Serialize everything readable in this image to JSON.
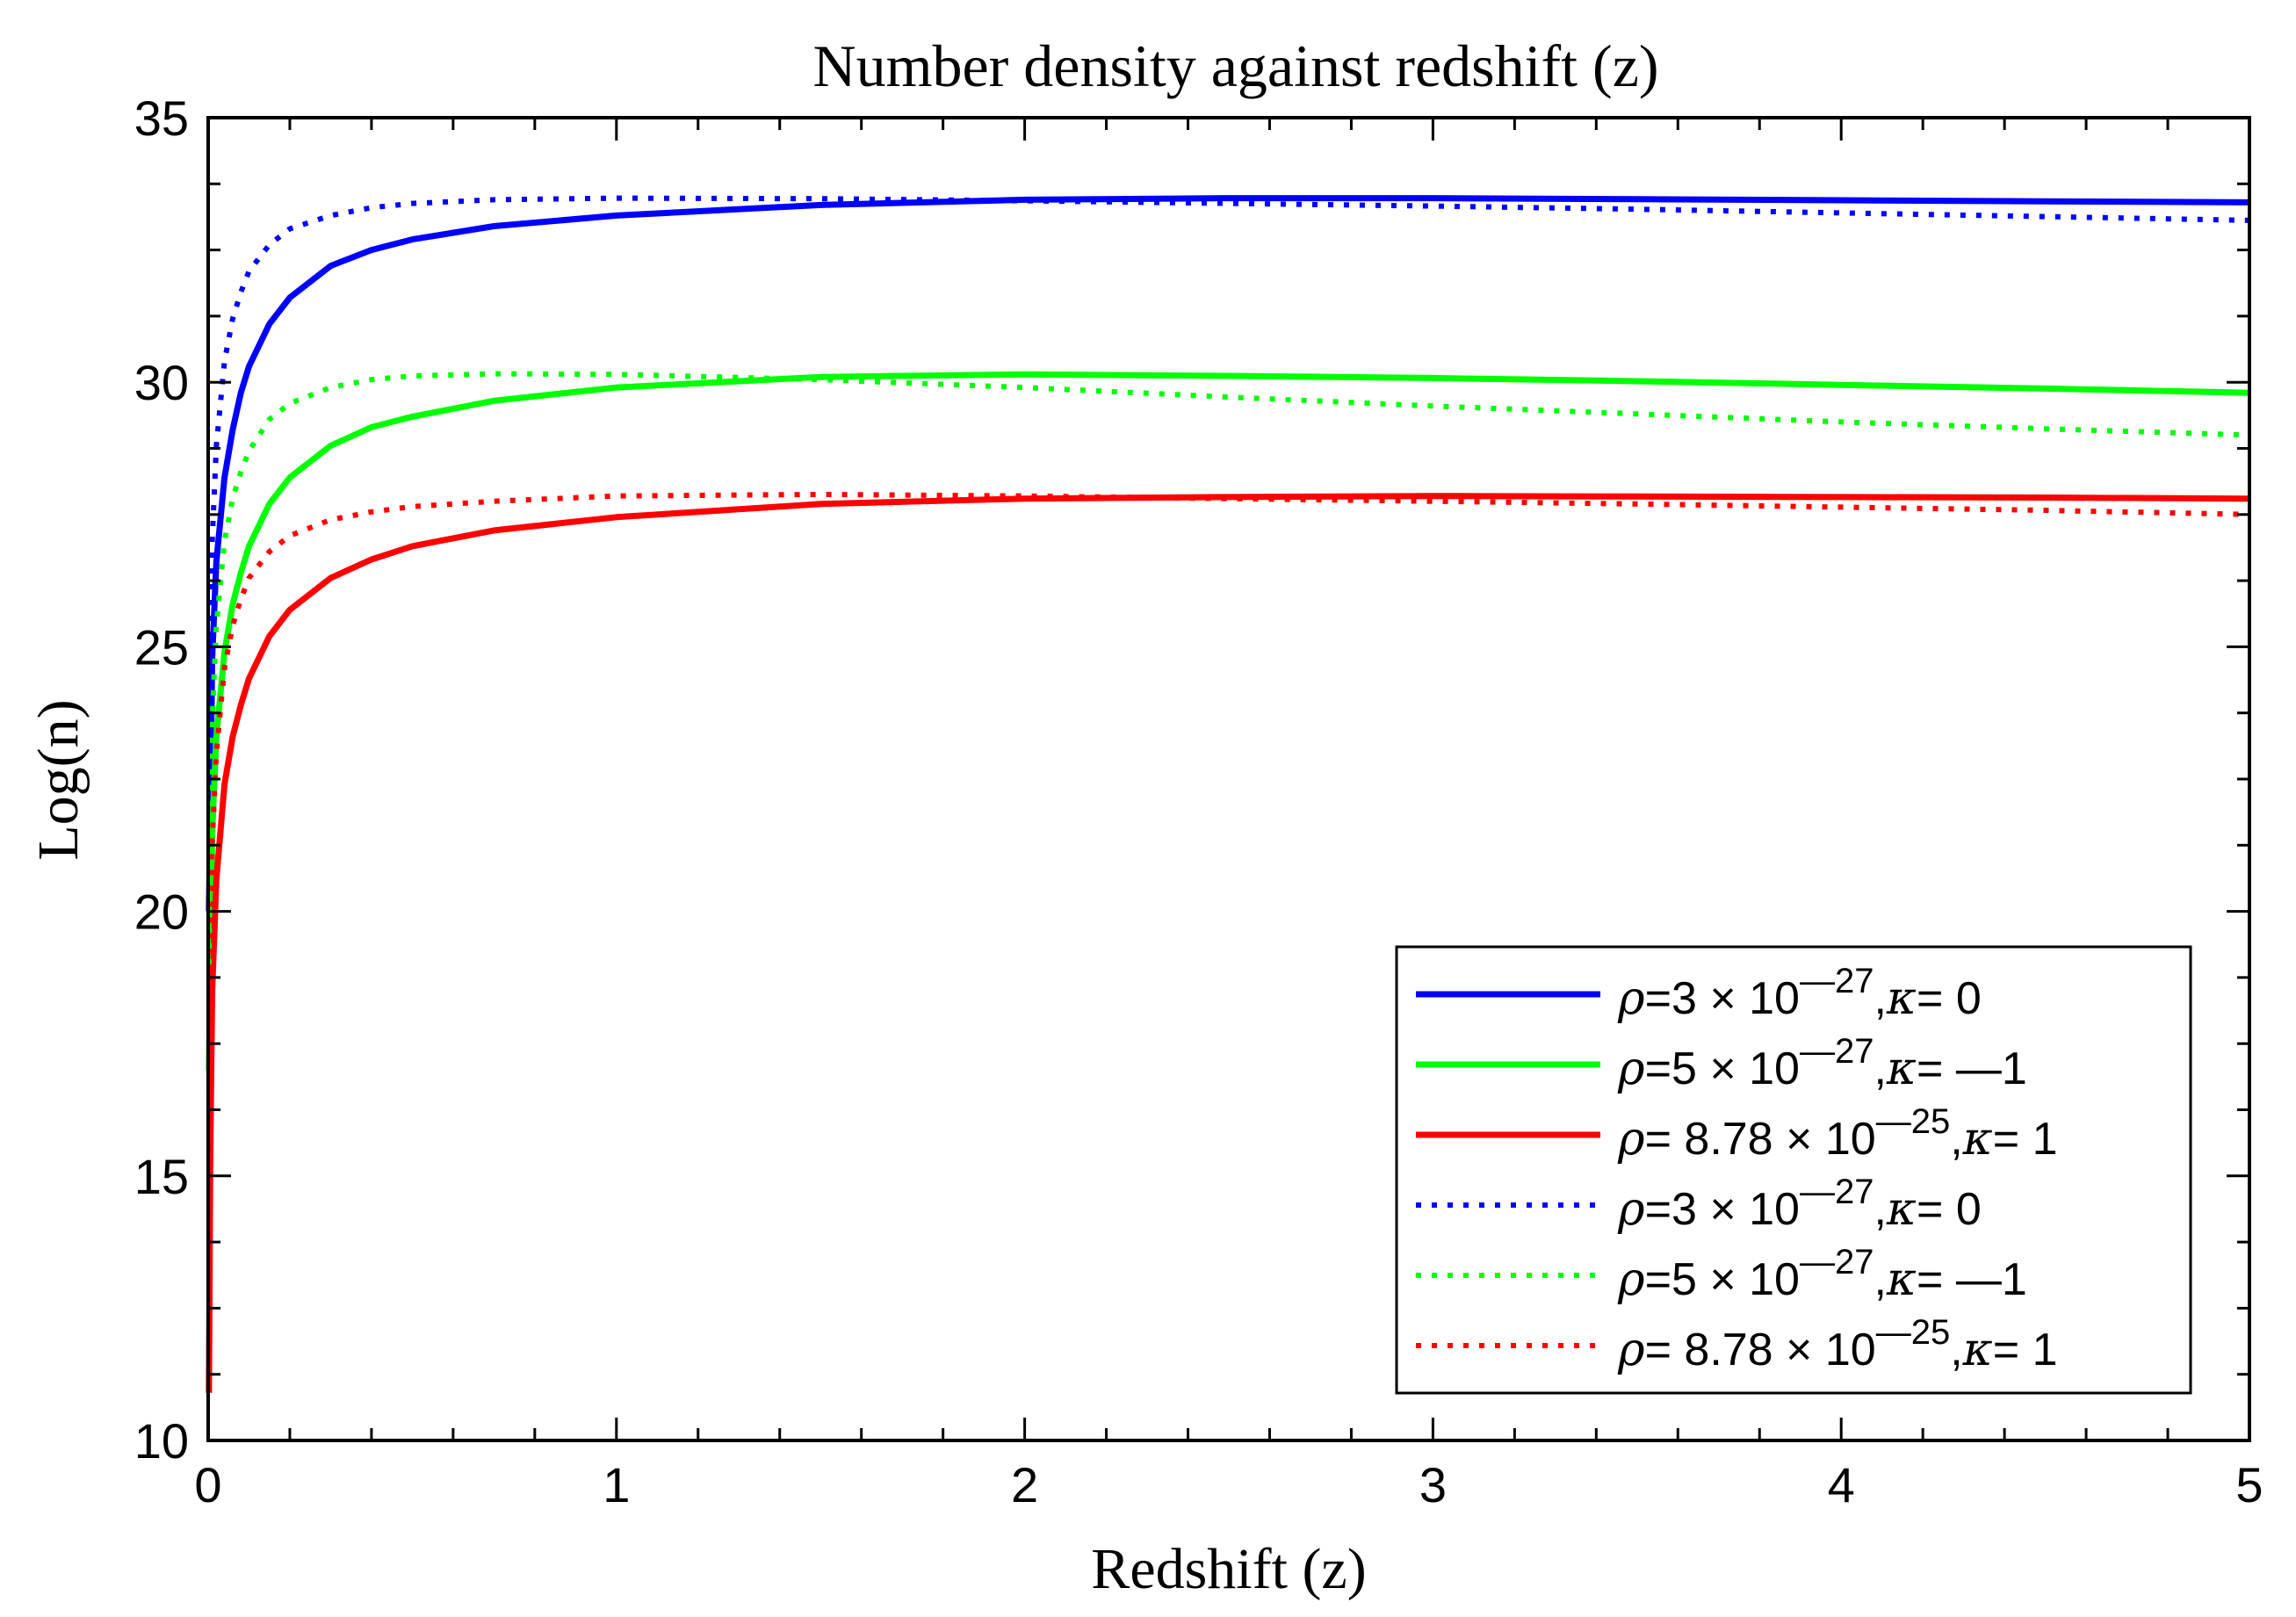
{
  "chart_data": {
    "type": "line",
    "title": "Number density against redshift (z)",
    "xlabel": "Redshift (z)",
    "ylabel": "Log(n)",
    "xlim": [
      0,
      5
    ],
    "ylim": [
      10,
      35
    ],
    "xticks": [
      0,
      1,
      2,
      3,
      4,
      5
    ],
    "xtick_labels": [
      "0",
      "1",
      "2",
      "3",
      "4",
      "5"
    ],
    "yticks": [
      10,
      15,
      20,
      25,
      30,
      35
    ],
    "ytick_labels": [
      "10",
      "15",
      "20",
      "25",
      "30",
      "35"
    ],
    "grid": false,
    "legend_position": "bottom-right",
    "series": [
      {
        "name": "ρ=3 × 10^-27, κ= 0 (solid)",
        "color": "#0000ff",
        "style": "solid",
        "legend": {
          "pre": "ρ",
          "mid": "=3 × 10",
          "exp": "—27",
          "comma": ",",
          "kappa": "κ",
          "post": "= 0"
        },
        "x": [
          0.002,
          0.01,
          0.02,
          0.04,
          0.06,
          0.08,
          0.1,
          0.15,
          0.2,
          0.3,
          0.4,
          0.5,
          0.7,
          1.0,
          1.5,
          2.0,
          2.5,
          3.0,
          3.5,
          4.0,
          4.5,
          5.0
        ],
        "y": [
          20.0,
          24.8,
          26.6,
          28.2,
          29.1,
          29.8,
          30.3,
          31.1,
          31.6,
          32.2,
          32.5,
          32.7,
          32.95,
          33.15,
          33.35,
          33.45,
          33.48,
          33.48,
          33.46,
          33.44,
          33.42,
          33.4
        ]
      },
      {
        "name": "ρ=5 × 10^-27, κ= —1 (solid)",
        "color": "#00ff00",
        "style": "solid",
        "legend": {
          "pre": "ρ",
          "mid": "=5 × 10",
          "exp": "—27",
          "comma": ",",
          "kappa": "κ",
          "post": "= —1"
        },
        "x": [
          0.002,
          0.01,
          0.02,
          0.04,
          0.06,
          0.08,
          0.1,
          0.15,
          0.2,
          0.3,
          0.4,
          0.5,
          0.7,
          1.0,
          1.5,
          2.0,
          2.5,
          3.0,
          3.5,
          4.0,
          4.5,
          5.0
        ],
        "y": [
          17.0,
          21.5,
          23.3,
          24.9,
          25.8,
          26.4,
          26.9,
          27.7,
          28.2,
          28.8,
          29.15,
          29.35,
          29.65,
          29.9,
          30.1,
          30.15,
          30.12,
          30.08,
          30.02,
          29.95,
          29.88,
          29.8
        ]
      },
      {
        "name": "ρ= 8.78 × 10^-25, κ= 1 (solid)",
        "color": "#ff0000",
        "style": "solid",
        "legend": {
          "pre": "ρ",
          "mid": "= 8.78 × 10",
          "exp": "—25",
          "comma": ",",
          "kappa": "κ",
          "post": "= 1"
        },
        "x": [
          0.002,
          0.005,
          0.01,
          0.02,
          0.04,
          0.06,
          0.08,
          0.1,
          0.15,
          0.2,
          0.3,
          0.4,
          0.5,
          0.7,
          1.0,
          1.5,
          2.0,
          2.5,
          3.0,
          3.5,
          4.0,
          4.5,
          5.0
        ],
        "y": [
          10.9,
          15.2,
          18.5,
          20.6,
          22.4,
          23.3,
          23.9,
          24.4,
          25.2,
          25.7,
          26.3,
          26.65,
          26.9,
          27.2,
          27.45,
          27.7,
          27.8,
          27.83,
          27.85,
          27.84,
          27.83,
          27.82,
          27.8
        ]
      },
      {
        "name": "ρ=3 × 10^-27, κ= 0 (dotted)",
        "color": "#0000ff",
        "style": "dotted",
        "legend": {
          "pre": "ρ",
          "mid": "=3 × 10",
          "exp": "—27",
          "comma": ",",
          "kappa": "κ",
          "post": "= 0"
        },
        "x": [
          0.002,
          0.01,
          0.02,
          0.04,
          0.06,
          0.08,
          0.1,
          0.15,
          0.2,
          0.3,
          0.4,
          0.5,
          0.7,
          1.0,
          1.5,
          2.0,
          2.5,
          3.0,
          3.5,
          4.0,
          4.5,
          5.0
        ],
        "y": [
          22.5,
          27.0,
          28.8,
          30.4,
          31.2,
          31.7,
          32.1,
          32.6,
          32.9,
          33.15,
          33.3,
          33.38,
          33.45,
          33.48,
          33.47,
          33.43,
          33.38,
          33.33,
          33.27,
          33.2,
          33.13,
          33.06
        ]
      },
      {
        "name": "ρ=5 × 10^-27, κ= —1 (dotted)",
        "color": "#00ff00",
        "style": "dotted",
        "legend": {
          "pre": "ρ",
          "mid": "=5 × 10",
          "exp": "—27",
          "comma": ",",
          "kappa": "κ",
          "post": "= —1"
        },
        "x": [
          0.002,
          0.01,
          0.02,
          0.04,
          0.06,
          0.08,
          0.1,
          0.15,
          0.2,
          0.3,
          0.4,
          0.5,
          0.7,
          1.0,
          1.5,
          2.0,
          2.5,
          3.0,
          3.5,
          4.0,
          4.5,
          5.0
        ],
        "y": [
          19.0,
          23.6,
          25.4,
          27.0,
          27.8,
          28.3,
          28.7,
          29.3,
          29.6,
          29.9,
          30.05,
          30.12,
          30.16,
          30.15,
          30.05,
          29.9,
          29.72,
          29.55,
          29.4,
          29.25,
          29.12,
          29.0
        ]
      },
      {
        "name": "ρ= 8.78 × 10^-25, κ= 1 (dotted)",
        "color": "#ff0000",
        "style": "dotted",
        "legend": {
          "pre": "ρ",
          "mid": "= 8.78 × 10",
          "exp": "—25",
          "comma": ",",
          "kappa": "κ",
          "post": "= 1"
        },
        "x": [
          0.002,
          0.01,
          0.02,
          0.04,
          0.06,
          0.08,
          0.1,
          0.15,
          0.2,
          0.3,
          0.4,
          0.5,
          0.7,
          1.0,
          1.5,
          2.0,
          2.5,
          3.0,
          3.5,
          4.0,
          4.5,
          5.0
        ],
        "y": [
          16.5,
          21.3,
          23.0,
          24.6,
          25.4,
          25.9,
          26.3,
          26.8,
          27.1,
          27.4,
          27.55,
          27.65,
          27.75,
          27.85,
          27.88,
          27.85,
          27.8,
          27.75,
          27.7,
          27.64,
          27.58,
          27.5
        ]
      }
    ]
  }
}
